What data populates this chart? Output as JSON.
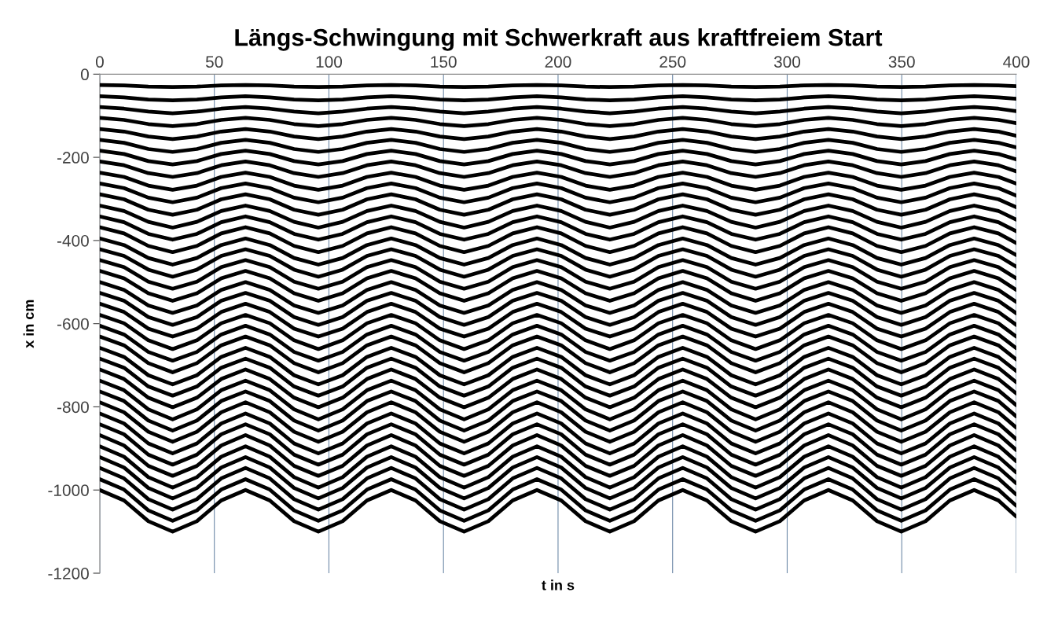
{
  "chart_data": {
    "type": "line",
    "title": "Längs-Schwingung mit Schwerkraft aus kraftfreiem Start",
    "xlabel": "t in s",
    "ylabel": "x in cm",
    "x": [
      0,
      10.6,
      21.2,
      31.8,
      42.4,
      53,
      63.6,
      74.2,
      84.8,
      95.4,
      106,
      116.6,
      127.2,
      137.8,
      148.4,
      159,
      169.6,
      180.2,
      190.8,
      201.4,
      212,
      222.6,
      233.2,
      243.8,
      254.4,
      265,
      275.6,
      286.2,
      296.8,
      307.4,
      318,
      328.6,
      339.2,
      349.8,
      360.4,
      371,
      381.6,
      392.2,
      400
    ],
    "xlim": [
      0,
      400
    ],
    "xticks": [
      0,
      50,
      100,
      150,
      200,
      250,
      300,
      350,
      400
    ],
    "ylim": [
      -1200,
      0
    ],
    "yticks": [
      -1200,
      -1000,
      -800,
      -600,
      -400,
      -200,
      0
    ],
    "grid": "x",
    "line_style": "solid",
    "marker": "none",
    "series": [
      {
        "color": "#000000",
        "values": [
          -26,
          -27,
          -30,
          -31,
          -30,
          -27,
          -26,
          -27,
          -30,
          -31,
          -30,
          -27,
          -26,
          -27,
          -30,
          -31,
          -30,
          -27,
          -26,
          -27,
          -30,
          -31,
          -30,
          -27,
          -26,
          -27,
          -30,
          -31,
          -30,
          -27,
          -26,
          -27,
          -30,
          -31,
          -30,
          -27,
          -26,
          -27,
          -29
        ]
      },
      {
        "color": "#000000",
        "values": [
          -53,
          -56,
          -61,
          -63,
          -61,
          -56,
          -53,
          -56,
          -61,
          -63,
          -61,
          -56,
          -53,
          -56,
          -61,
          -63,
          -61,
          -56,
          -53,
          -56,
          -61,
          -63,
          -61,
          -56,
          -53,
          -56,
          -61,
          -63,
          -61,
          -56,
          -53,
          -56,
          -61,
          -63,
          -61,
          -56,
          -53,
          -56,
          -59
        ]
      },
      {
        "color": "#000000",
        "values": [
          -79,
          -83,
          -90,
          -94,
          -90,
          -83,
          -79,
          -83,
          -90,
          -94,
          -90,
          -83,
          -79,
          -83,
          -90,
          -94,
          -90,
          -83,
          -79,
          -83,
          -90,
          -94,
          -90,
          -83,
          -79,
          -83,
          -90,
          -94,
          -90,
          -83,
          -79,
          -83,
          -90,
          -94,
          -90,
          -83,
          -79,
          -83,
          -89
        ]
      },
      {
        "color": "#000000",
        "values": [
          -105,
          -110,
          -120,
          -125,
          -120,
          -110,
          -105,
          -110,
          -120,
          -125,
          -120,
          -110,
          -105,
          -110,
          -120,
          -125,
          -120,
          -110,
          -105,
          -110,
          -120,
          -125,
          -120,
          -110,
          -105,
          -110,
          -120,
          -125,
          -120,
          -110,
          -105,
          -110,
          -120,
          -125,
          -120,
          -110,
          -105,
          -110,
          -118
        ]
      },
      {
        "color": "#000000",
        "values": [
          -132,
          -138,
          -150,
          -156,
          -150,
          -138,
          -132,
          -138,
          -150,
          -156,
          -150,
          -138,
          -132,
          -138,
          -150,
          -156,
          -150,
          -138,
          -132,
          -138,
          -150,
          -156,
          -150,
          -138,
          -132,
          -138,
          -150,
          -156,
          -150,
          -138,
          -132,
          -138,
          -150,
          -156,
          -150,
          -138,
          -132,
          -138,
          -148
        ]
      },
      {
        "color": "#000000",
        "values": [
          -158,
          -165,
          -180,
          -187,
          -180,
          -165,
          -158,
          -165,
          -180,
          -187,
          -180,
          -165,
          -158,
          -165,
          -180,
          -187,
          -180,
          -165,
          -158,
          -165,
          -180,
          -187,
          -180,
          -165,
          -158,
          -165,
          -180,
          -187,
          -180,
          -165,
          -158,
          -165,
          -180,
          -187,
          -180,
          -165,
          -158,
          -165,
          -176
        ]
      },
      {
        "color": "#000000",
        "values": [
          -184,
          -192,
          -209,
          -217,
          -209,
          -192,
          -184,
          -192,
          -209,
          -217,
          -209,
          -192,
          -184,
          -192,
          -209,
          -217,
          -209,
          -192,
          -184,
          -192,
          -209,
          -217,
          -209,
          -192,
          -184,
          -192,
          -209,
          -217,
          -209,
          -192,
          -184,
          -192,
          -209,
          -217,
          -209,
          -192,
          -184,
          -192,
          -205
        ]
      },
      {
        "color": "#000000",
        "values": [
          -210,
          -219,
          -238,
          -247,
          -238,
          -219,
          -210,
          -219,
          -238,
          -247,
          -238,
          -219,
          -210,
          -219,
          -238,
          -247,
          -238,
          -219,
          -210,
          -219,
          -238,
          -247,
          -238,
          -219,
          -210,
          -219,
          -238,
          -247,
          -238,
          -219,
          -210,
          -219,
          -238,
          -247,
          -238,
          -219,
          -210,
          -219,
          -234
        ]
      },
      {
        "color": "#000000",
        "values": [
          -237,
          -247,
          -268,
          -278,
          -268,
          -247,
          -237,
          -247,
          -268,
          -278,
          -268,
          -247,
          -237,
          -247,
          -268,
          -278,
          -268,
          -247,
          -237,
          -247,
          -268,
          -278,
          -268,
          -247,
          -237,
          -247,
          -268,
          -278,
          -268,
          -247,
          -237,
          -247,
          -268,
          -278,
          -268,
          -247,
          -237,
          -247,
          -263
        ]
      },
      {
        "color": "#000000",
        "values": [
          -263,
          -274,
          -297,
          -308,
          -297,
          -274,
          -263,
          -274,
          -297,
          -308,
          -297,
          -274,
          -263,
          -274,
          -297,
          -308,
          -297,
          -274,
          -263,
          -274,
          -297,
          -308,
          -297,
          -274,
          -263,
          -274,
          -297,
          -308,
          -297,
          -274,
          -263,
          -274,
          -297,
          -308,
          -297,
          -274,
          -263,
          -274,
          -292
        ]
      },
      {
        "color": "#000000",
        "values": [
          -289,
          -301,
          -326,
          -338,
          -326,
          -301,
          -289,
          -301,
          -326,
          -338,
          -326,
          -301,
          -289,
          -301,
          -326,
          -338,
          -326,
          -301,
          -289,
          -301,
          -326,
          -338,
          -326,
          -301,
          -289,
          -301,
          -326,
          -338,
          -326,
          -301,
          -289,
          -301,
          -326,
          -338,
          -326,
          -301,
          -289,
          -301,
          -320
        ]
      },
      {
        "color": "#000000",
        "values": [
          -316,
          -329,
          -355,
          -369,
          -355,
          -329,
          -316,
          -329,
          -355,
          -369,
          -355,
          -329,
          -316,
          -329,
          -355,
          -369,
          -355,
          -329,
          -316,
          -329,
          -355,
          -369,
          -355,
          -329,
          -316,
          -329,
          -355,
          -369,
          -355,
          -329,
          -316,
          -329,
          -355,
          -369,
          -355,
          -329,
          -316,
          -329,
          -350
        ]
      },
      {
        "color": "#000000",
        "values": [
          -342,
          -356,
          -384,
          -398,
          -384,
          -356,
          -342,
          -356,
          -384,
          -398,
          -384,
          -356,
          -342,
          -356,
          -384,
          -398,
          -384,
          -356,
          -342,
          -356,
          -384,
          -398,
          -384,
          -356,
          -342,
          -356,
          -384,
          -398,
          -384,
          -356,
          -342,
          -356,
          -384,
          -398,
          -384,
          -356,
          -342,
          -356,
          -378
        ]
      },
      {
        "color": "#000000",
        "values": [
          -368,
          -383,
          -413,
          -428,
          -413,
          -383,
          -368,
          -383,
          -413,
          -428,
          -413,
          -383,
          -368,
          -383,
          -413,
          -428,
          -413,
          -383,
          -368,
          -383,
          -413,
          -428,
          -413,
          -383,
          -368,
          -383,
          -413,
          -428,
          -413,
          -383,
          -368,
          -383,
          -413,
          -428,
          -413,
          -383,
          -368,
          -383,
          -406
        ]
      },
      {
        "color": "#000000",
        "values": [
          -395,
          -411,
          -442,
          -458,
          -442,
          -411,
          -395,
          -411,
          -442,
          -458,
          -442,
          -411,
          -395,
          -411,
          -442,
          -458,
          -442,
          -411,
          -395,
          -411,
          -442,
          -458,
          -442,
          -411,
          -395,
          -411,
          -442,
          -458,
          -442,
          -411,
          -395,
          -411,
          -442,
          -458,
          -442,
          -411,
          -395,
          -411,
          -435
        ]
      },
      {
        "color": "#000000",
        "values": [
          -421,
          -437,
          -470,
          -487,
          -470,
          -437,
          -421,
          -437,
          -470,
          -487,
          -470,
          -437,
          -421,
          -437,
          -470,
          -487,
          -470,
          -437,
          -421,
          -437,
          -470,
          -487,
          -470,
          -437,
          -421,
          -437,
          -470,
          -487,
          -470,
          -437,
          -421,
          -437,
          -470,
          -487,
          -470,
          -437,
          -421,
          -437,
          -463
        ]
      },
      {
        "color": "#000000",
        "values": [
          -447,
          -464,
          -499,
          -516,
          -499,
          -464,
          -447,
          -464,
          -499,
          -516,
          -499,
          -464,
          -447,
          -464,
          -499,
          -516,
          -499,
          -464,
          -447,
          -464,
          -499,
          -516,
          -499,
          -464,
          -447,
          -464,
          -499,
          -516,
          -499,
          -464,
          -447,
          -464,
          -499,
          -516,
          -499,
          -464,
          -447,
          -464,
          -491
        ]
      },
      {
        "color": "#000000",
        "values": [
          -473,
          -491,
          -527,
          -545,
          -527,
          -491,
          -473,
          -491,
          -527,
          -545,
          -527,
          -491,
          -473,
          -491,
          -527,
          -545,
          -527,
          -491,
          -473,
          -491,
          -527,
          -545,
          -527,
          -491,
          -473,
          -491,
          -527,
          -545,
          -527,
          -491,
          -473,
          -491,
          -527,
          -545,
          -527,
          -491,
          -473,
          -491,
          -519
        ]
      },
      {
        "color": "#000000",
        "values": [
          -500,
          -519,
          -556,
          -574,
          -556,
          -519,
          -500,
          -519,
          -556,
          -574,
          -556,
          -519,
          -500,
          -519,
          -556,
          -574,
          -556,
          -519,
          -500,
          -519,
          -556,
          -574,
          -556,
          -519,
          -500,
          -519,
          -556,
          -574,
          -556,
          -519,
          -500,
          -519,
          -556,
          -574,
          -556,
          -519,
          -500,
          -519,
          -548
        ]
      },
      {
        "color": "#000000",
        "values": [
          -526,
          -545,
          -584,
          -603,
          -584,
          -545,
          -526,
          -545,
          -584,
          -603,
          -584,
          -545,
          -526,
          -545,
          -584,
          -603,
          -584,
          -545,
          -526,
          -545,
          -584,
          -603,
          -584,
          -545,
          -526,
          -545,
          -584,
          -603,
          -584,
          -545,
          -526,
          -545,
          -584,
          -603,
          -584,
          -545,
          -526,
          -545,
          -575
        ]
      },
      {
        "color": "#000000",
        "values": [
          -552,
          -572,
          -612,
          -631,
          -612,
          -572,
          -552,
          -572,
          -612,
          -631,
          -612,
          -572,
          -552,
          -572,
          -612,
          -631,
          -612,
          -572,
          -552,
          -572,
          -612,
          -631,
          -612,
          -572,
          -552,
          -572,
          -612,
          -631,
          -612,
          -572,
          -552,
          -572,
          -612,
          -631,
          -612,
          -572,
          -552,
          -572,
          -603
        ]
      },
      {
        "color": "#000000",
        "values": [
          -579,
          -599,
          -640,
          -661,
          -640,
          -599,
          -579,
          -599,
          -640,
          -661,
          -640,
          -599,
          -579,
          -599,
          -640,
          -661,
          -640,
          -599,
          -579,
          -599,
          -640,
          -661,
          -640,
          -599,
          -579,
          -599,
          -640,
          -661,
          -640,
          -599,
          -579,
          -599,
          -640,
          -661,
          -640,
          -599,
          -579,
          -599,
          -631
        ]
      },
      {
        "color": "#000000",
        "values": [
          -605,
          -626,
          -668,
          -689,
          -668,
          -626,
          -605,
          -626,
          -668,
          -689,
          -668,
          -626,
          -605,
          -626,
          -668,
          -689,
          -668,
          -626,
          -605,
          -626,
          -668,
          -689,
          -668,
          -626,
          -605,
          -626,
          -668,
          -689,
          -668,
          -626,
          -605,
          -626,
          -668,
          -689,
          -668,
          -626,
          -605,
          -626,
          -659
        ]
      },
      {
        "color": "#000000",
        "values": [
          -631,
          -652,
          -695,
          -717,
          -695,
          -652,
          -631,
          -652,
          -695,
          -717,
          -695,
          -652,
          -631,
          -652,
          -695,
          -717,
          -695,
          -652,
          -631,
          -652,
          -695,
          -717,
          -695,
          -652,
          -631,
          -652,
          -695,
          -717,
          -695,
          -652,
          -631,
          -652,
          -695,
          -717,
          -695,
          -652,
          -631,
          -652,
          -686
        ]
      },
      {
        "color": "#000000",
        "values": [
          -658,
          -680,
          -724,
          -746,
          -724,
          -680,
          -658,
          -680,
          -724,
          -746,
          -724,
          -680,
          -658,
          -680,
          -724,
          -746,
          -724,
          -680,
          -658,
          -680,
          -724,
          -746,
          -724,
          -680,
          -658,
          -680,
          -724,
          -746,
          -724,
          -680,
          -658,
          -680,
          -724,
          -746,
          -724,
          -680,
          -658,
          -680,
          -714
        ]
      },
      {
        "color": "#000000",
        "values": [
          -684,
          -706,
          -751,
          -773,
          -751,
          -706,
          -684,
          -706,
          -751,
          -773,
          -751,
          -706,
          -684,
          -706,
          -751,
          -773,
          -751,
          -706,
          -684,
          -706,
          -751,
          -773,
          -751,
          -706,
          -684,
          -706,
          -751,
          -773,
          -751,
          -706,
          -684,
          -706,
          -751,
          -773,
          -751,
          -706,
          -684,
          -706,
          -741
        ]
      },
      {
        "color": "#000000",
        "values": [
          -710,
          -733,
          -778,
          -801,
          -778,
          -733,
          -710,
          -733,
          -778,
          -801,
          -778,
          -733,
          -710,
          -733,
          -778,
          -801,
          -778,
          -733,
          -710,
          -733,
          -778,
          -801,
          -778,
          -733,
          -710,
          -733,
          -778,
          -801,
          -778,
          -733,
          -710,
          -733,
          -778,
          -801,
          -778,
          -733,
          -710,
          -733,
          -768
        ]
      },
      {
        "color": "#000000",
        "values": [
          -737,
          -760,
          -806,
          -830,
          -806,
          -760,
          -737,
          -760,
          -806,
          -830,
          -806,
          -760,
          -737,
          -760,
          -806,
          -830,
          -806,
          -760,
          -737,
          -760,
          -806,
          -830,
          -806,
          -760,
          -737,
          -760,
          -806,
          -830,
          -806,
          -760,
          -737,
          -760,
          -806,
          -830,
          -806,
          -760,
          -737,
          -760,
          -796
        ]
      },
      {
        "color": "#000000",
        "values": [
          -763,
          -786,
          -833,
          -857,
          -833,
          -786,
          -763,
          -786,
          -833,
          -857,
          -833,
          -786,
          -763,
          -786,
          -833,
          -857,
          -833,
          -786,
          -763,
          -786,
          -833,
          -857,
          -833,
          -786,
          -763,
          -786,
          -833,
          -857,
          -833,
          -786,
          -763,
          -786,
          -833,
          -857,
          -833,
          -786,
          -763,
          -786,
          -823
        ]
      },
      {
        "color": "#000000",
        "values": [
          -789,
          -813,
          -860,
          -884,
          -860,
          -813,
          -789,
          -813,
          -860,
          -884,
          -860,
          -813,
          -789,
          -813,
          -860,
          -884,
          -860,
          -813,
          -789,
          -813,
          -860,
          -884,
          -860,
          -813,
          -789,
          -813,
          -860,
          -884,
          -860,
          -813,
          -789,
          -813,
          -860,
          -884,
          -860,
          -813,
          -789,
          -813,
          -850
        ]
      },
      {
        "color": "#000000",
        "values": [
          -816,
          -840,
          -888,
          -912,
          -888,
          -840,
          -816,
          -840,
          -888,
          -912,
          -888,
          -840,
          -816,
          -840,
          -888,
          -912,
          -888,
          -840,
          -816,
          -840,
          -888,
          -912,
          -888,
          -840,
          -816,
          -840,
          -888,
          -912,
          -888,
          -840,
          -816,
          -840,
          -888,
          -912,
          -888,
          -840,
          -816,
          -840,
          -878
        ]
      },
      {
        "color": "#000000",
        "values": [
          -842,
          -866,
          -915,
          -939,
          -915,
          -866,
          -842,
          -866,
          -915,
          -939,
          -915,
          -866,
          -842,
          -866,
          -915,
          -939,
          -915,
          -866,
          -842,
          -866,
          -915,
          -939,
          -915,
          -866,
          -842,
          -866,
          -915,
          -939,
          -915,
          -866,
          -842,
          -866,
          -915,
          -939,
          -915,
          -866,
          -842,
          -866,
          -904
        ]
      },
      {
        "color": "#000000",
        "values": [
          -868,
          -893,
          -942,
          -966,
          -942,
          -893,
          -868,
          -893,
          -942,
          -966,
          -942,
          -893,
          -868,
          -893,
          -942,
          -966,
          -942,
          -893,
          -868,
          -893,
          -942,
          -966,
          -942,
          -893,
          -868,
          -893,
          -942,
          -966,
          -942,
          -893,
          -868,
          -893,
          -942,
          -966,
          -942,
          -893,
          -868,
          -893,
          -931
        ]
      },
      {
        "color": "#000000",
        "values": [
          -895,
          -920,
          -969,
          -994,
          -969,
          -920,
          -895,
          -920,
          -969,
          -994,
          -969,
          -920,
          -895,
          -920,
          -969,
          -994,
          -969,
          -920,
          -895,
          -920,
          -969,
          -994,
          -969,
          -920,
          -895,
          -920,
          -969,
          -994,
          -969,
          -920,
          -895,
          -920,
          -969,
          -994,
          -969,
          -920,
          -895,
          -920,
          -958
        ]
      },
      {
        "color": "#000000",
        "values": [
          -921,
          -946,
          -995,
          -1020,
          -995,
          -946,
          -921,
          -946,
          -995,
          -1020,
          -995,
          -946,
          -921,
          -946,
          -995,
          -1020,
          -995,
          -946,
          -921,
          -946,
          -995,
          -1020,
          -995,
          -946,
          -921,
          -946,
          -995,
          -1020,
          -995,
          -946,
          -921,
          -946,
          -995,
          -1020,
          -995,
          -946,
          -921,
          -946,
          -984
        ]
      },
      {
        "color": "#000000",
        "values": [
          -947,
          -972,
          -1022,
          -1047,
          -1022,
          -972,
          -947,
          -972,
          -1022,
          -1047,
          -1022,
          -972,
          -947,
          -972,
          -1022,
          -1047,
          -1022,
          -972,
          -947,
          -972,
          -1022,
          -1047,
          -1022,
          -972,
          -947,
          -972,
          -1022,
          -1047,
          -1022,
          -972,
          -947,
          -972,
          -1022,
          -1047,
          -1022,
          -972,
          -947,
          -972,
          -1011
        ]
      },
      {
        "color": "#000000",
        "values": [
          -974,
          -999,
          -1049,
          -1074,
          -1049,
          -999,
          -974,
          -999,
          -1049,
          -1074,
          -1049,
          -999,
          -974,
          -999,
          -1049,
          -1074,
          -1049,
          -999,
          -974,
          -999,
          -1049,
          -1074,
          -1049,
          -999,
          -974,
          -999,
          -1049,
          -1074,
          -1049,
          -999,
          -974,
          -999,
          -1049,
          -1074,
          -1049,
          -999,
          -974,
          -999,
          -1038
        ]
      },
      {
        "color": "#000000",
        "values": [
          -1000,
          -1025,
          -1075,
          -1100,
          -1075,
          -1025,
          -1000,
          -1025,
          -1075,
          -1100,
          -1075,
          -1025,
          -1000,
          -1025,
          -1075,
          -1100,
          -1075,
          -1025,
          -1000,
          -1025,
          -1075,
          -1100,
          -1075,
          -1025,
          -1000,
          -1025,
          -1075,
          -1100,
          -1075,
          -1025,
          -1000,
          -1025,
          -1075,
          -1100,
          -1075,
          -1025,
          -1000,
          -1025,
          -1064
        ]
      }
    ]
  }
}
